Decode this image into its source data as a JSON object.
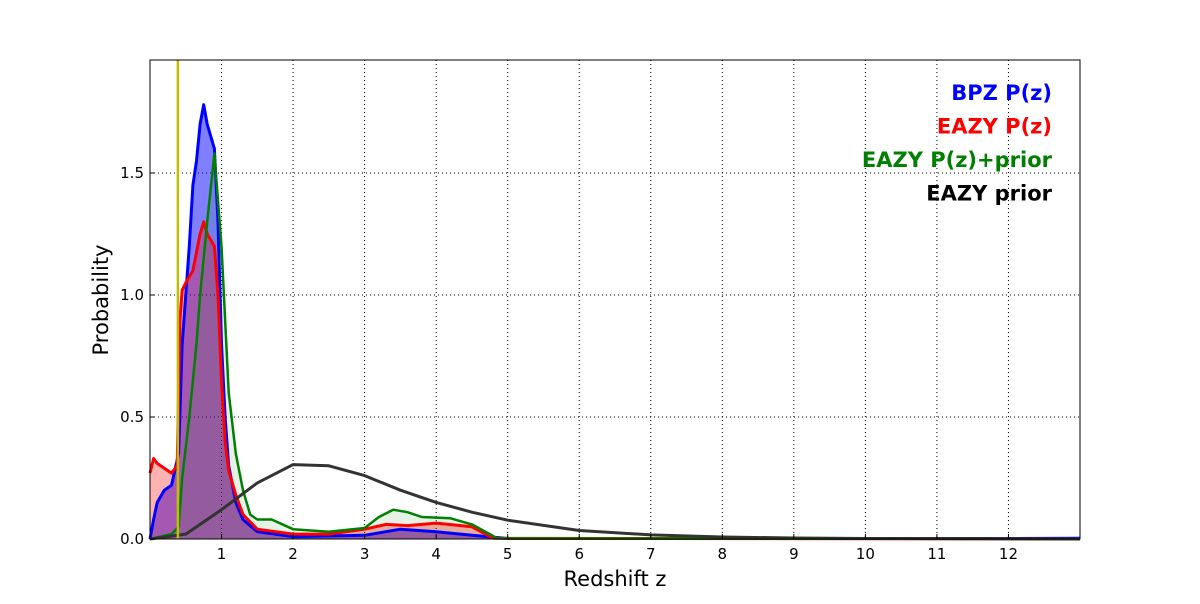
{
  "chart_data": {
    "type": "area",
    "title": "",
    "xlabel": "Redshift z",
    "ylabel": "Probability",
    "xlim": [
      0,
      13
    ],
    "ylim": [
      0,
      1.963
    ],
    "grid": true,
    "legend_placement": "top-right",
    "xticks": [
      1,
      2,
      3,
      4,
      5,
      6,
      7,
      8,
      9,
      10,
      11,
      12
    ],
    "xtick_labels": [
      "1",
      "2",
      "3",
      "4",
      "5",
      "6",
      "7",
      "8",
      "9",
      "10",
      "11",
      "12"
    ],
    "yticks": [
      0,
      0.5,
      1.0,
      1.5
    ],
    "ytick_labels": [
      "0.0",
      "0.5",
      "1.0",
      "1.5"
    ],
    "vline": {
      "x": 0.39,
      "color": "#bfbf00"
    },
    "series": [
      {
        "name": "BPZ P(z)",
        "color": "#0000ff",
        "fill": "rgba(0,0,255,0.5)",
        "width": 3,
        "x": [
          0,
          0.05,
          0.1,
          0.2,
          0.3,
          0.4,
          0.45,
          0.55,
          0.6,
          0.65,
          0.7,
          0.75,
          0.8,
          0.85,
          0.9,
          0.95,
          1.0,
          1.05,
          1.1,
          1.2,
          1.3,
          1.5,
          2,
          3,
          3.5,
          4,
          4.5,
          5,
          12,
          13
        ],
        "y": [
          0,
          0.08,
          0.15,
          0.2,
          0.22,
          0.35,
          0.8,
          1.2,
          1.45,
          1.55,
          1.7,
          1.78,
          1.7,
          1.65,
          1.6,
          1.3,
          0.8,
          0.5,
          0.3,
          0.15,
          0.08,
          0.03,
          0.01,
          0.015,
          0.04,
          0.03,
          0.015,
          0.002,
          0.002,
          0.003
        ]
      },
      {
        "name": "EAZY P(z)",
        "color": "#ff0000",
        "fill": "rgba(255,0,0,0.3)",
        "width": 3,
        "x": [
          0,
          0.05,
          0.1,
          0.2,
          0.3,
          0.38,
          0.42,
          0.45,
          0.5,
          0.6,
          0.7,
          0.75,
          0.8,
          0.9,
          0.95,
          1.0,
          1.05,
          1.1,
          1.2,
          1.3,
          1.5,
          2,
          2.5,
          3,
          3.3,
          3.6,
          4,
          4.5,
          4.8,
          13
        ],
        "y": [
          0.27,
          0.33,
          0.31,
          0.29,
          0.27,
          0.3,
          0.9,
          1.02,
          1.05,
          1.1,
          1.25,
          1.3,
          1.25,
          1.2,
          1.0,
          0.65,
          0.4,
          0.28,
          0.18,
          0.1,
          0.04,
          0.02,
          0.02,
          0.04,
          0.06,
          0.055,
          0.065,
          0.05,
          0.003,
          0
        ]
      },
      {
        "name": "EAZY P(z)+prior",
        "color": "#008000",
        "fill": "rgba(0,128,0,0.1)",
        "width": 2.5,
        "x": [
          0,
          0.3,
          0.4,
          0.45,
          0.55,
          0.65,
          0.7,
          0.8,
          0.9,
          1.0,
          1.05,
          1.1,
          1.2,
          1.3,
          1.4,
          1.5,
          1.7,
          2.0,
          2.5,
          3,
          3.2,
          3.4,
          3.6,
          3.8,
          4.2,
          4.5,
          4.75,
          4.85,
          13
        ],
        "y": [
          0,
          0.02,
          0.05,
          0.25,
          0.5,
          0.8,
          1.0,
          1.3,
          1.58,
          1.2,
          0.9,
          0.6,
          0.35,
          0.2,
          0.1,
          0.08,
          0.08,
          0.04,
          0.03,
          0.045,
          0.09,
          0.12,
          0.11,
          0.09,
          0.085,
          0.06,
          0.02,
          0.003,
          0
        ]
      },
      {
        "name": "EAZY prior",
        "color": "#333333",
        "fill": null,
        "width": 3,
        "x": [
          0,
          0.5,
          1,
          1.5,
          2,
          2.5,
          3,
          3.5,
          4,
          4.5,
          5,
          6,
          7,
          8,
          9,
          10,
          12,
          13
        ],
        "y": [
          0,
          0.02,
          0.12,
          0.23,
          0.305,
          0.3,
          0.26,
          0.2,
          0.15,
          0.11,
          0.077,
          0.035,
          0.017,
          0.008,
          0.004,
          0.002,
          0.001,
          0
        ]
      }
    ],
    "legend": [
      {
        "label": "BPZ P(z)",
        "color": "#0000ff"
      },
      {
        "label": "EAZY P(z)",
        "color": "#ff0000"
      },
      {
        "label": "EAZY P(z)+prior",
        "color": "#008000"
      },
      {
        "label": "EAZY prior",
        "color": "#000000"
      }
    ]
  }
}
